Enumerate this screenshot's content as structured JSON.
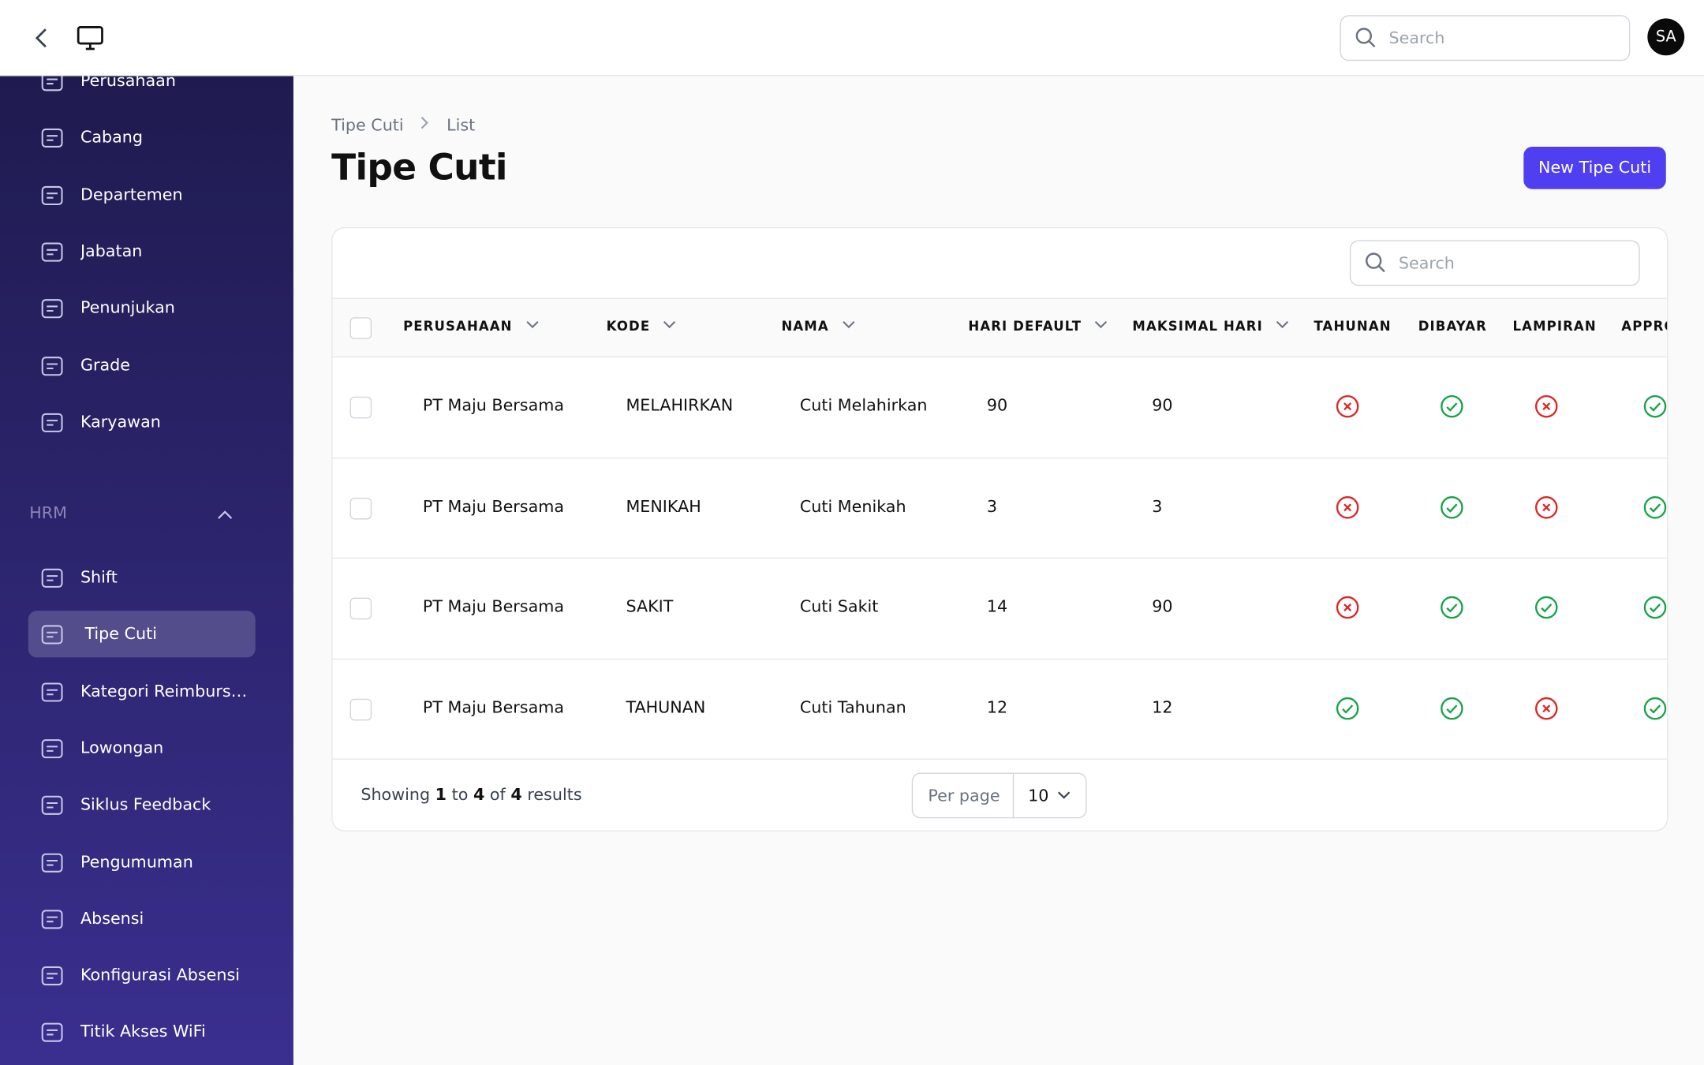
{
  "topbar": {
    "search_placeholder": "Search",
    "avatar": "SA"
  },
  "sidebar": {
    "items_top": [
      "Perusahaan",
      "Cabang",
      "Departemen",
      "Jabatan",
      "Penunjukan",
      "Grade",
      "Karyawan"
    ],
    "section": "HRM",
    "items_hrm": [
      "Shift",
      "Tipe Cuti",
      "Kategori Reimbursement",
      "Lowongan",
      "Siklus Feedback",
      "Pengumuman",
      "Absensi",
      "Konfigurasi Absensi",
      "Titik Akses WiFi"
    ],
    "active": "Tipe Cuti"
  },
  "breadcrumb": [
    "Tipe Cuti",
    "List"
  ],
  "title": "Tipe Cuti",
  "new_button": "New Tipe Cuti",
  "table": {
    "search_placeholder": "Search",
    "columns": [
      "PERUSAHAAN",
      "KODE",
      "NAMA",
      "HARI DEFAULT",
      "MAKSIMAL HARI",
      "TAHUNAN",
      "DIBAYAR",
      "LAMPIRAN",
      "APPROVAL"
    ],
    "rows": [
      [
        "PT Maju Bersama",
        "MELAHIRKAN",
        "Cuti Melahirkan",
        90,
        90,
        false,
        true,
        false,
        true
      ],
      [
        "PT Maju Bersama",
        "MENIKAH",
        "Cuti Menikah",
        3,
        3,
        false,
        true,
        false,
        true
      ],
      [
        "PT Maju Bersama",
        "SAKIT",
        "Cuti Sakit",
        14,
        90,
        false,
        true,
        true,
        true
      ],
      [
        "PT Maju Bersama",
        "TAHUNAN",
        "Cuti Tahunan",
        12,
        12,
        true,
        true,
        false,
        true
      ]
    ]
  },
  "footer": {
    "summary": [
      {
        "text": "Showing",
        "bold": false
      },
      {
        "text": "1",
        "bold": true
      },
      {
        "text": "to",
        "bold": false
      },
      {
        "text": "4",
        "bold": true
      },
      {
        "text": "of",
        "bold": false
      },
      {
        "text": "4",
        "bold": true
      },
      {
        "text": "results",
        "bold": false
      }
    ],
    "per_page_label": "Per page",
    "per_page": 10
  }
}
